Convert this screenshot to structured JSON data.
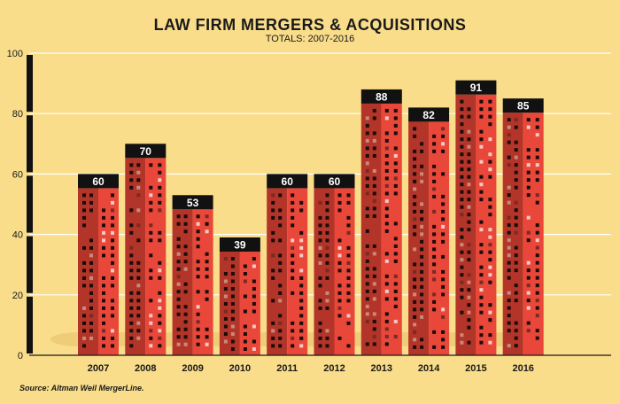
{
  "chart_data": {
    "type": "bar",
    "title": "LAW FIRM MERGERS & ACQUISITIONS",
    "subtitle": "TOTALS: 2007-2016",
    "categories": [
      "2007",
      "2008",
      "2009",
      "2010",
      "2011",
      "2012",
      "2013",
      "2014",
      "2015",
      "2016"
    ],
    "values": [
      60,
      70,
      53,
      39,
      60,
      60,
      88,
      82,
      91,
      85
    ],
    "data_labels": [
      "60",
      "70",
      "53",
      "39",
      "60",
      "60",
      "88",
      "82",
      "91",
      "85"
    ],
    "yticks": [
      "0",
      "20",
      "40",
      "60",
      "80",
      "100"
    ],
    "ylim": [
      0,
      100
    ],
    "grid": true,
    "source": "Source: Altman Weil MergerLine.",
    "colors": {
      "background": "#f9dd8a",
      "bar_front": "#e8473a",
      "bar_side": "#b33428",
      "label_box": "#111111",
      "grid": "#ffffff"
    }
  }
}
